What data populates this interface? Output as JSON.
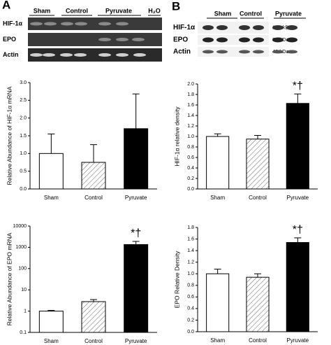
{
  "panels": [
    "A",
    "B"
  ],
  "gels": [
    {
      "columns": [
        "Sham",
        "Control",
        "Pyruvate",
        "H₂O"
      ],
      "rows": [
        "HIF-1α",
        "EPO",
        "Actin"
      ]
    },
    {
      "columns": [
        "Sham",
        "Control",
        "Pyruvate"
      ],
      "rows": [
        "HIF-1α",
        "EPO",
        "Actin"
      ],
      "markers": [
        "120 kDa",
        "32 kDa",
        "43 kDa"
      ]
    }
  ],
  "chart_data": [
    {
      "type": "bar",
      "ylabel": "Relative Abundance of HIF-1α mRNA",
      "categories": [
        "Sham",
        "Control",
        "Pyruvate"
      ],
      "values": [
        1.0,
        0.75,
        1.7
      ],
      "errors": [
        0.55,
        0.5,
        0.98
      ],
      "colors": [
        "#ffffff",
        "#ffffff",
        "#000000"
      ],
      "patterns": [
        "none",
        "diagonal",
        "none"
      ],
      "bar_annotations": [
        null,
        null,
        null
      ],
      "ylim": [
        0,
        3.0
      ],
      "yscale": "linear",
      "yticks": [
        {
          "value": 0,
          "label": "0.0"
        },
        0.5,
        {
          "value": 1,
          "label": "1.0"
        },
        1.5,
        {
          "value": 2,
          "label": "2.0"
        },
        2.5,
        {
          "value": 3,
          "label": "3.0"
        }
      ]
    },
    {
      "type": "bar",
      "ylabel": "Relative Abundance of EPO mRNA",
      "categories": [
        "Sham",
        "Control",
        "Pyruvate"
      ],
      "values": [
        1.0,
        2.8,
        1350
      ],
      "errors": [
        0.08,
        0.7,
        550
      ],
      "colors": [
        "#ffffff",
        "#ffffff",
        "#000000"
      ],
      "patterns": [
        "none",
        "diagonal",
        "none"
      ],
      "bar_annotations": [
        null,
        null,
        "*†"
      ],
      "ylim": [
        0.1,
        10000
      ],
      "yscale": "log",
      "yticks": [
        0.1,
        1,
        10,
        100,
        1000,
        10000
      ]
    },
    {
      "type": "bar",
      "ylabel": "HIF-1α relative density",
      "categories": [
        "Sham",
        "Control",
        "Pyruvate"
      ],
      "values": [
        1.0,
        0.95,
        1.63
      ],
      "errors": [
        0.05,
        0.07,
        0.18
      ],
      "colors": [
        "#ffffff",
        "#ffffff",
        "#000000"
      ],
      "patterns": [
        "none",
        "diagonal",
        "none"
      ],
      "bar_annotations": [
        null,
        null,
        "*†"
      ],
      "ylim": [
        0,
        2.0
      ],
      "yscale": "linear",
      "yticks": [
        {
          "value": 0,
          "label": "0.0"
        },
        0.2,
        0.4,
        0.6,
        0.8,
        {
          "value": 1,
          "label": "1.0"
        },
        1.2,
        1.4,
        1.6,
        1.8,
        {
          "value": 2,
          "label": "2.0"
        }
      ]
    },
    {
      "type": "bar",
      "ylabel": "EPO Relative Density",
      "categories": [
        "Sham",
        "Control",
        "Pyruvate"
      ],
      "values": [
        1.0,
        0.94,
        1.54
      ],
      "errors": [
        0.08,
        0.06,
        0.08
      ],
      "colors": [
        "#ffffff",
        "#ffffff",
        "#000000"
      ],
      "patterns": [
        "none",
        "diagonal",
        "none"
      ],
      "bar_annotations": [
        null,
        null,
        "*†"
      ],
      "ylim": [
        0,
        1.8
      ],
      "yscale": "linear",
      "yticks": [
        {
          "value": 0,
          "label": "0.0"
        },
        0.2,
        0.4,
        0.6,
        0.8,
        {
          "value": 1,
          "label": "1.0"
        },
        1.2,
        1.4,
        1.6,
        1.8
      ]
    }
  ]
}
